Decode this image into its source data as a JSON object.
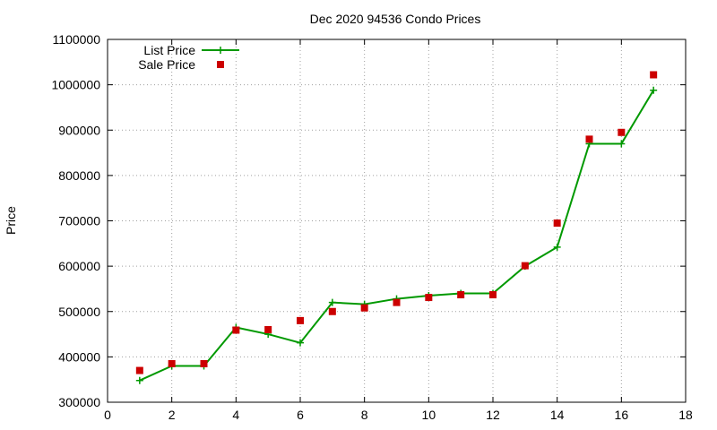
{
  "chart_data": {
    "type": "line",
    "title": "Dec 2020 94536 Condo Prices",
    "xlabel": "",
    "ylabel": "Price",
    "xlim": [
      0,
      18
    ],
    "ylim": [
      300000,
      1100000
    ],
    "x_ticks": [
      0,
      2,
      4,
      6,
      8,
      10,
      12,
      14,
      16,
      18
    ],
    "y_ticks": [
      300000,
      400000,
      500000,
      600000,
      700000,
      800000,
      900000,
      1000000,
      1100000
    ],
    "grid": true,
    "legend_position": "top-left",
    "series": [
      {
        "name": "List Price",
        "style": "line-plus",
        "color": "#009900",
        "x": [
          1,
          2,
          3,
          4,
          5,
          6,
          7,
          8,
          9,
          10,
          11,
          12,
          13,
          14,
          15,
          16,
          17
        ],
        "values": [
          348000,
          380000,
          380000,
          465000,
          450000,
          431000,
          520000,
          516000,
          528000,
          535000,
          540000,
          540000,
          600000,
          642000,
          870000,
          870000,
          988000
        ]
      },
      {
        "name": "Sale Price",
        "style": "square-points",
        "color": "#cc0000",
        "x": [
          1,
          2,
          3,
          4,
          5,
          6,
          7,
          8,
          9,
          10,
          11,
          12,
          13,
          14,
          15,
          16,
          17
        ],
        "values": [
          370000,
          385000,
          385000,
          459000,
          460000,
          480000,
          500000,
          508000,
          520000,
          531000,
          537000,
          537000,
          601000,
          695000,
          880000,
          895000,
          1022000
        ]
      }
    ]
  }
}
